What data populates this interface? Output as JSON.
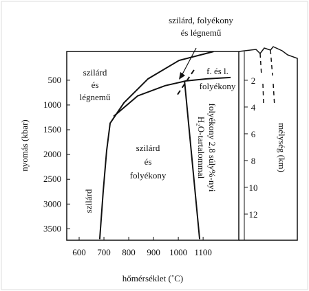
{
  "chart_data": {
    "type": "line",
    "xlabel": "hőmérséklet (˚C)",
    "ylabel": "nyomás (kbar)",
    "y2label": "mélység (km)",
    "xlim": [
      550,
      1244
    ],
    "xticks": [
      600,
      700,
      800,
      900,
      1000,
      1100
    ],
    "ylim": [
      3730,
      -80
    ],
    "yticks": [
      500,
      1000,
      1500,
      2000,
      2500,
      3000,
      3500
    ],
    "y2lim": [
      13.95,
      -0.15
    ],
    "y2ticks": [
      2,
      4,
      6,
      8,
      10,
      12
    ],
    "series": [
      {
        "color": "#111",
        "x": [
          683,
          697,
          711,
          725,
          781,
          878,
          1003,
          1142
        ],
        "values": [
          3708,
          2745,
          1918,
          1368,
          954,
          472,
          101,
          -78
        ]
      },
      {
        "color": "#111",
        "x": [
          739,
          836,
          947,
          1031,
          1114,
          1211
        ],
        "values": [
          1230,
          817,
          610,
          514,
          472,
          445
        ]
      },
      {
        "color": "#111",
        "x": [
          1025,
          1086
        ],
        "values": [
          514,
          3708
        ]
      },
      {
        "color": "#111",
        "dashed": true,
        "x": [
          997,
          1067
        ],
        "values": [
          789,
          266
        ]
      }
    ],
    "annotations": [
      "szilárd, folyékony",
      "és légnemű",
      "szilárd",
      "és",
      "légnemű",
      "f. és l.",
      "folyékony",
      "szilárd",
      "és",
      "folyékony",
      "szilárd",
      "folyékony 2,8 súly%-nyi",
      "H₂O-tartalommal"
    ]
  }
}
